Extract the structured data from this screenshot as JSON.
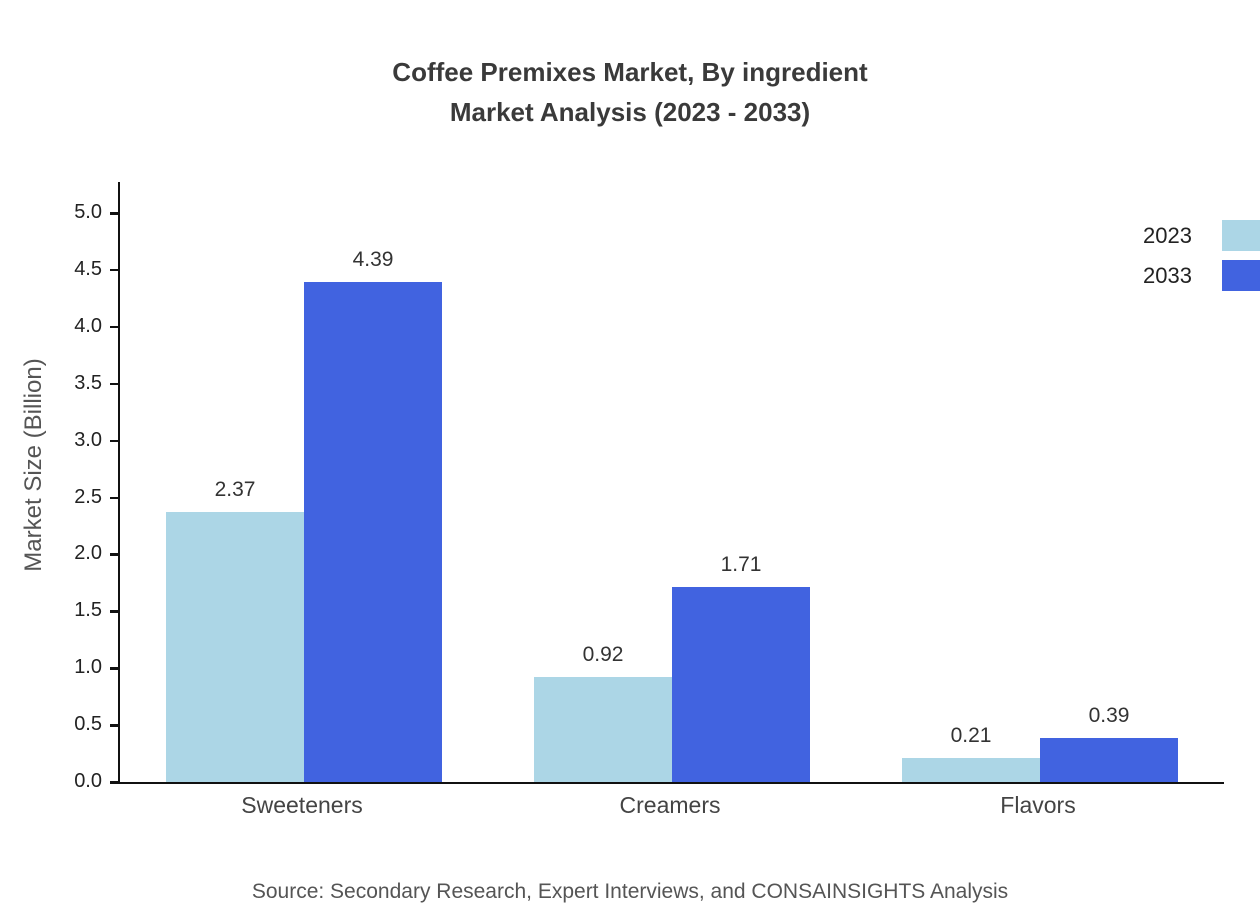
{
  "title": {
    "line1": "Coffee Premixes Market, By ingredient",
    "line2": "Market Analysis (2023 - 2033)"
  },
  "source": "Source: Secondary Research, Expert Interviews, and CONSAINSIGHTS Analysis",
  "chart_data": {
    "type": "bar",
    "title": "Coffee Premixes Market, By ingredient Market Analysis (2023 - 2033)",
    "categories": [
      "Sweeteners",
      "Creamers",
      "Flavors"
    ],
    "series": [
      {
        "name": "2023",
        "color": "#ACD6E6",
        "values": [
          2.37,
          0.92,
          0.21
        ]
      },
      {
        "name": "2033",
        "color": "#4163E0",
        "values": [
          4.39,
          1.71,
          0.39
        ]
      }
    ],
    "xlabel": "",
    "ylabel": "Market Size (Billion)",
    "ylim": [
      0,
      5
    ],
    "yticks": [
      0.0,
      0.5,
      1.0,
      1.5,
      2.0,
      2.5,
      3.0,
      3.5,
      4.0,
      4.5,
      5.0
    ],
    "grid": false,
    "legend_position": "top-right",
    "value_labels": true
  }
}
